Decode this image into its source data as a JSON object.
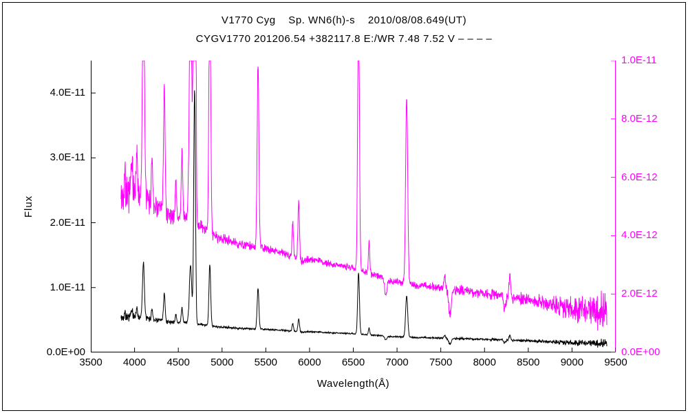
{
  "figure": {
    "background": "#ffffff",
    "border_color": "#000000",
    "accent_color": "#ff00ff"
  },
  "chart_data": {
    "type": "line",
    "title": "V1770 Cyg    Sp. WN6(h)-s    2010/08/08.649(UT)",
    "subtitle": "CYGV1770 201206.54 +382117.8 E:/WR 7.48 7.52 V – – – –",
    "xlabel": "Wavelength(Å)",
    "ylabel": "Flux",
    "grid": false,
    "legend": "none",
    "x_range": [
      3500,
      9500
    ],
    "x_ticks": [
      3500,
      4000,
      4500,
      5000,
      5500,
      6000,
      6500,
      7000,
      7500,
      8000,
      8500,
      9000,
      9500
    ],
    "left_axis": {
      "color": "#000000",
      "range": [
        0,
        4.5e-11
      ],
      "ticks": [
        {
          "value": 0,
          "label": "0.0E+00"
        },
        {
          "value": 1e-11,
          "label": "1.0E-11"
        },
        {
          "value": 2e-11,
          "label": "2.0E-11"
        },
        {
          "value": 3e-11,
          "label": "3.0E-11"
        },
        {
          "value": 4e-11,
          "label": "4.0E-11"
        }
      ]
    },
    "right_axis": {
      "color": "#ff00ff",
      "range": [
        0,
        1e-11
      ],
      "ticks": [
        {
          "value": 0,
          "label": "0.0E+00"
        },
        {
          "value": 2e-12,
          "label": "2.0E-12"
        },
        {
          "value": 4e-12,
          "label": "4.0E-12"
        },
        {
          "value": 6e-12,
          "label": "6.0E-12"
        },
        {
          "value": 8e-12,
          "label": "8.0E-12"
        },
        {
          "value": 1e-11,
          "label": "1.0E-11"
        }
      ]
    },
    "spectrum": {
      "wavelength_start": 3845,
      "wavelength_end": 9400,
      "sample_step": 3,
      "unit": 1e-12,
      "seed": 42,
      "continuum_points": [
        [
          3845,
          5.2
        ],
        [
          3900,
          5.4
        ],
        [
          3950,
          5.6
        ],
        [
          4000,
          5.5
        ],
        [
          4100,
          5.3
        ],
        [
          4200,
          5.1
        ],
        [
          4300,
          4.9
        ],
        [
          4400,
          4.7
        ],
        [
          4500,
          4.6
        ],
        [
          4600,
          4.6
        ],
        [
          4700,
          4.4
        ],
        [
          4800,
          4.2
        ],
        [
          4900,
          4.0
        ],
        [
          5000,
          3.9
        ],
        [
          5100,
          3.8
        ],
        [
          5200,
          3.7
        ],
        [
          5300,
          3.65
        ],
        [
          5400,
          3.6
        ],
        [
          5500,
          3.55
        ],
        [
          5600,
          3.5
        ],
        [
          5700,
          3.4
        ],
        [
          5800,
          3.3
        ],
        [
          5900,
          3.1
        ],
        [
          6000,
          3.2
        ],
        [
          6100,
          3.15
        ],
        [
          6200,
          3.05
        ],
        [
          6300,
          3.0
        ],
        [
          6400,
          2.95
        ],
        [
          6500,
          2.9
        ],
        [
          6600,
          2.8
        ],
        [
          6700,
          2.7
        ],
        [
          6800,
          2.6
        ],
        [
          6900,
          2.45
        ],
        [
          7000,
          2.4
        ],
        [
          7100,
          2.35
        ],
        [
          7200,
          2.3
        ],
        [
          7300,
          2.3
        ],
        [
          7400,
          2.25
        ],
        [
          7500,
          2.2
        ],
        [
          7600,
          2.1
        ],
        [
          7700,
          2.15
        ],
        [
          7800,
          2.1
        ],
        [
          8000,
          2.0
        ],
        [
          8200,
          1.95
        ],
        [
          8400,
          1.85
        ],
        [
          8600,
          1.75
        ],
        [
          8800,
          1.6
        ],
        [
          9000,
          1.5
        ],
        [
          9200,
          1.4
        ],
        [
          9400,
          1.3
        ]
      ],
      "emission_lines": [
        [
          3889,
          1.0,
          8
        ],
        [
          3968,
          0.9,
          8
        ],
        [
          4026,
          1.4,
          8
        ],
        [
          4101,
          8.5,
          11
        ],
        [
          4200,
          1.6,
          8
        ],
        [
          4340,
          4.2,
          9
        ],
        [
          4472,
          1.2,
          8
        ],
        [
          4542,
          2.2,
          9
        ],
        [
          4640,
          9.0,
          13
        ],
        [
          4686,
          36.0,
          10
        ],
        [
          4860,
          9.5,
          10
        ],
        [
          5411,
          6.3,
          10
        ],
        [
          5808,
          1.2,
          8
        ],
        [
          5876,
          2.0,
          9
        ],
        [
          6560,
          9.5,
          10
        ],
        [
          6680,
          1.0,
          8
        ],
        [
          6870,
          -0.5,
          12
        ],
        [
          7110,
          6.4,
          12
        ],
        [
          7545,
          0.5,
          9
        ],
        [
          7605,
          -0.85,
          13
        ],
        [
          8230,
          -0.45,
          12
        ],
        [
          8290,
          0.7,
          9
        ]
      ],
      "noise_amplitude": [
        [
          3845,
          1.0
        ],
        [
          3900,
          0.95
        ],
        [
          3960,
          0.85
        ],
        [
          4050,
          0.55
        ],
        [
          4150,
          0.5
        ],
        [
          4300,
          0.4
        ],
        [
          4500,
          0.33
        ],
        [
          4700,
          0.3
        ],
        [
          5000,
          0.22
        ],
        [
          5500,
          0.16
        ],
        [
          6000,
          0.15
        ],
        [
          6500,
          0.13
        ],
        [
          7000,
          0.15
        ],
        [
          7500,
          0.18
        ],
        [
          8000,
          0.22
        ],
        [
          8400,
          0.26
        ],
        [
          8700,
          0.32
        ],
        [
          9000,
          0.5
        ],
        [
          9200,
          0.65
        ],
        [
          9400,
          0.85
        ]
      ]
    },
    "series": [
      {
        "name": "spectrum-right-axis-magenta",
        "axis": "right",
        "color": "#ff00ff"
      },
      {
        "name": "spectrum-left-axis-black",
        "axis": "left",
        "color": "#000000"
      }
    ]
  }
}
